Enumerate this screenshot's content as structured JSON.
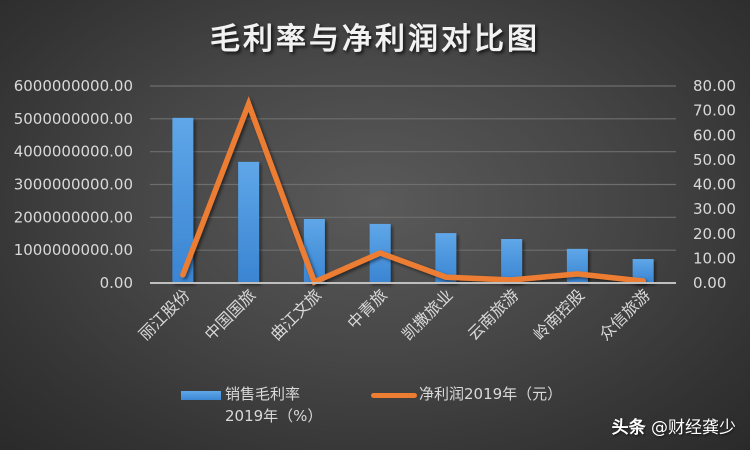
{
  "title": "毛利率与净利润对比图",
  "legend": {
    "bar_line1": "销售毛利率",
    "bar_line2": "2019年（%）",
    "line": "净利润2019年（元）"
  },
  "watermark": {
    "brand": "头条",
    "handle": "@财经龚少"
  },
  "colors": {
    "bar_top": "#5fa7e8",
    "bar_bottom": "#3a84d2",
    "line": "#ed7d31",
    "grid": "#6e6e6e",
    "axis": "#bfbfbf"
  },
  "chart_data": {
    "type": "bar+line",
    "title": "毛利率与净利润对比图",
    "categories": [
      "丽江股份",
      "中国国旅",
      "曲江文旅",
      "中青旅",
      "凯撒旅业",
      "云南旅游",
      "岭南控股",
      "众信旅游"
    ],
    "series": [
      {
        "name": "销售毛利率2019年（%）",
        "type": "bar",
        "axis": "left",
        "values": [
          5030000000,
          3690000000,
          1950000000,
          1800000000,
          1520000000,
          1340000000,
          1040000000,
          730000000
        ]
      },
      {
        "name": "净利润2019年（元）",
        "type": "line",
        "axis": "right",
        "values": [
          3.3,
          72.7,
          0.4,
          12.2,
          2.4,
          1.2,
          3.7,
          0.8
        ]
      }
    ],
    "y_left": {
      "ylim": [
        0,
        6000000000
      ],
      "ticks": [
        "0.00",
        "1000000000.00",
        "2000000000.00",
        "3000000000.00",
        "4000000000.00",
        "5000000000.00",
        "6000000000.00"
      ]
    },
    "y_right": {
      "ylim": [
        0,
        80
      ],
      "ticks": [
        "0.00",
        "10.00",
        "20.00",
        "30.00",
        "40.00",
        "50.00",
        "60.00",
        "70.00",
        "80.00"
      ]
    },
    "xlabel": "",
    "ylabel": "",
    "grid": true,
    "legend_position": "bottom"
  }
}
